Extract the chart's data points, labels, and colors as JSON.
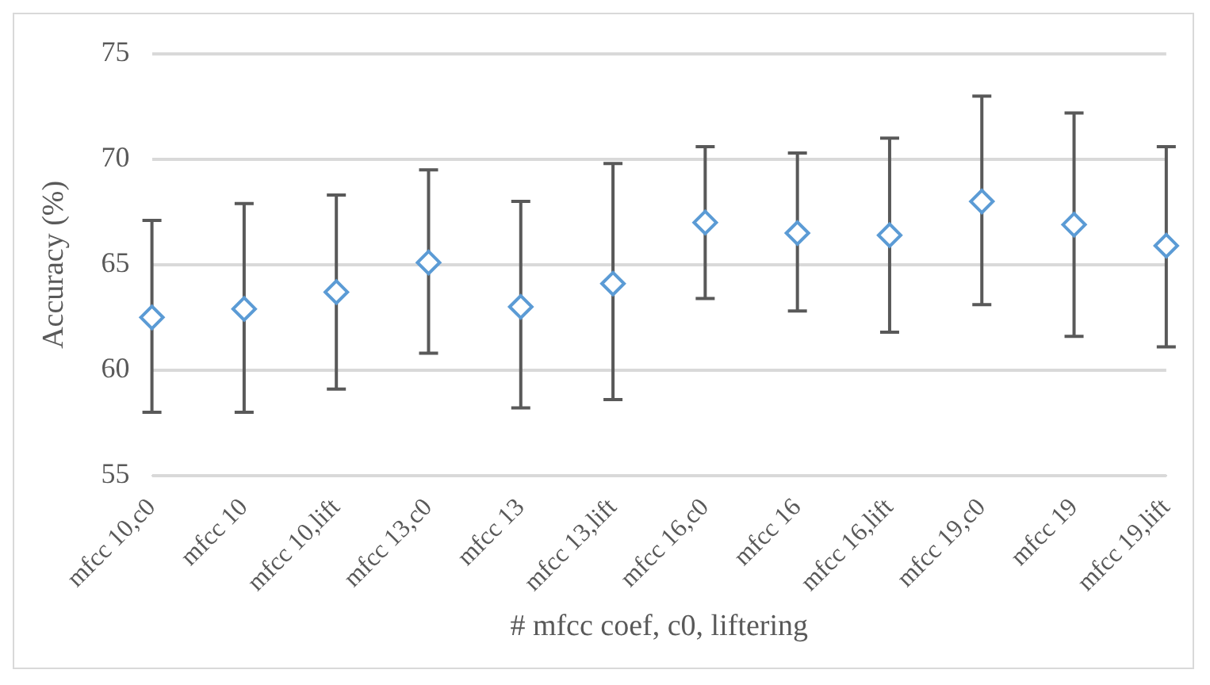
{
  "chart_data": {
    "type": "scatter",
    "xlabel": "# mfcc coef, c0, liftering",
    "ylabel": "Accuracy (%)",
    "categories": [
      "mfcc 10,c0",
      "mfcc 10",
      "mfcc 10,lift",
      "mfcc 13,c0",
      "mfcc 13",
      "mfcc 13,lift",
      "mfcc 16,c0",
      "mfcc 16",
      "mfcc 16,lift",
      "mfcc 19,c0",
      "mfcc 19",
      "mfcc 19,lift"
    ],
    "series": [
      {
        "color": "#5b9bd5",
        "values": [
          62.5,
          62.9,
          63.7,
          65.1,
          63.0,
          64.1,
          67.0,
          66.5,
          66.4,
          68.0,
          66.9,
          65.9
        ],
        "errors": [
          [
            58.0,
            67.1
          ],
          [
            58.0,
            67.9
          ],
          [
            59.1,
            68.3
          ],
          [
            60.8,
            69.5
          ],
          [
            58.2,
            68.0
          ],
          [
            58.6,
            69.8
          ],
          [
            63.4,
            70.6
          ],
          [
            62.8,
            70.3
          ],
          [
            61.8,
            71.0
          ],
          [
            63.1,
            73.0
          ],
          [
            61.6,
            72.2
          ],
          [
            61.1,
            70.6
          ]
        ]
      }
    ],
    "ylim": [
      55,
      75
    ],
    "yticks": [
      55,
      60,
      65,
      70,
      75
    ],
    "grid": "y",
    "legend": false,
    "marker": "diamond"
  }
}
